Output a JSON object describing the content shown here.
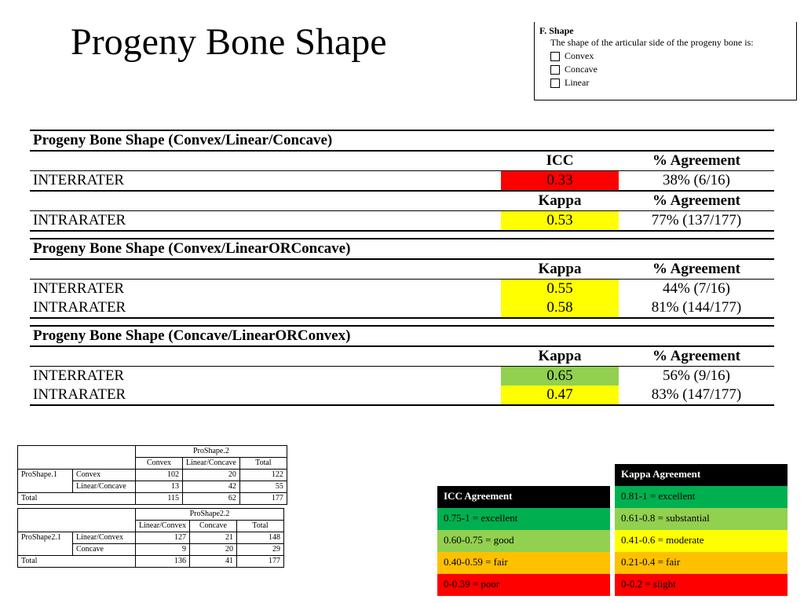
{
  "title": "Progeny Bone Shape",
  "form": {
    "heading": "F. Shape",
    "description": "The shape of the articular side of the progeny bone is:",
    "options": [
      "Convex",
      "Concave",
      "Linear"
    ]
  },
  "colors": {
    "red": "#ff0000",
    "yellow": "#ffff00",
    "lightgreen": "#92d050",
    "green": "#00b050",
    "orange": "#ffc000"
  },
  "sections": [
    {
      "title": "Progeny Bone Shape (Convex/Linear/Concave)",
      "blocks": [
        {
          "stat_label": "ICC",
          "agr_label": "% Agreement",
          "rows": [
            {
              "name": "INTERRATER",
              "stat": "0.33",
              "stat_bg": "#ff0000",
              "agr": "38% (6/16)"
            }
          ]
        },
        {
          "stat_label": "Kappa",
          "agr_label": "% Agreement",
          "midline": true,
          "rows": [
            {
              "name": "INTRARATER",
              "stat": "0.53",
              "stat_bg": "#ffff00",
              "agr": "77% (137/177)"
            }
          ]
        }
      ]
    },
    {
      "title": "Progeny Bone Shape (Convex/LinearORConcave)",
      "blocks": [
        {
          "stat_label": "Kappa",
          "agr_label": "% Agreement",
          "rows": [
            {
              "name": "INTERRATER",
              "stat": "0.55",
              "stat_bg": "#ffff00",
              "agr": "44% (7/16)"
            },
            {
              "name": "INTRARATER",
              "stat": "0.58",
              "stat_bg": "#ffff00",
              "agr": "81% (144/177)"
            }
          ]
        }
      ]
    },
    {
      "title": "Progeny Bone Shape (Concave/LinearORConvex)",
      "blocks": [
        {
          "stat_label": "Kappa",
          "agr_label": "% Agreement",
          "rows": [
            {
              "name": "INTERRATER",
              "stat": "0.65",
              "stat_bg": "#92d050",
              "agr": "56% (9/16)"
            },
            {
              "name": "INTRARATER",
              "stat": "0.47",
              "stat_bg": "#ffff00",
              "agr": "83% (147/177)"
            }
          ]
        }
      ]
    }
  ],
  "crosstabs": [
    {
      "top": "ProShape.2",
      "cols": [
        "Convex",
        "Linear/Concave",
        "Total"
      ],
      "side": "ProShape.1",
      "rows": [
        {
          "label": "Convex",
          "vals": [
            "102",
            "20",
            "122"
          ]
        },
        {
          "label": "Linear/Concave",
          "vals": [
            "13",
            "42",
            "55"
          ]
        }
      ],
      "total": {
        "label": "Total",
        "vals": [
          "115",
          "62",
          "177"
        ]
      }
    },
    {
      "top": "ProShape2.2",
      "cols": [
        "Linear/Convex",
        "Concave",
        "Total"
      ],
      "side": "ProShape2.1",
      "rows": [
        {
          "label": "Linear/Convex",
          "vals": [
            "127",
            "21",
            "148"
          ]
        },
        {
          "label": "Concave",
          "vals": [
            "9",
            "20",
            "29"
          ]
        }
      ],
      "total": {
        "label": "Total",
        "vals": [
          "136",
          "41",
          "177"
        ]
      }
    }
  ],
  "legends": {
    "icc": {
      "header": "ICC Agreement",
      "levels": [
        {
          "text": "0.75-1 = excellent",
          "bg": "#00b050"
        },
        {
          "text": "0.60-0.75 = good",
          "bg": "#92d050"
        },
        {
          "text": "0.40-0.59 = fair",
          "bg": "#ffc000"
        },
        {
          "text": "0-0.39 = poor",
          "bg": "#ff0000"
        }
      ]
    },
    "kappa": {
      "header": "Kappa Agreement",
      "levels": [
        {
          "text": "0.81-1 = excellent",
          "bg": "#00b050"
        },
        {
          "text": "0.61-0.8 = substantial",
          "bg": "#92d050"
        },
        {
          "text": "0.41-0.6 = moderate",
          "bg": "#ffff00"
        },
        {
          "text": "0.21-0.4 = fair",
          "bg": "#ffc000"
        },
        {
          "text": "0-0.2 = slight",
          "bg": "#ff0000"
        }
      ]
    }
  }
}
